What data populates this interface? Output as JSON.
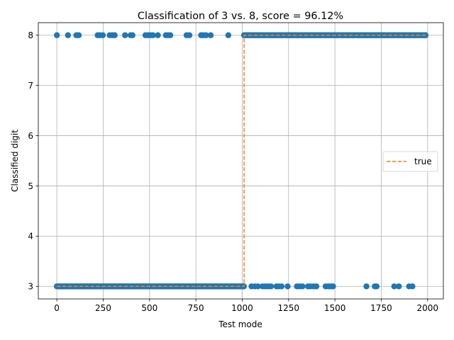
{
  "chart_data": {
    "type": "scatter",
    "title": "Classification of 3 vs. 8, score = 96.12%",
    "xlabel": "Test mode",
    "ylabel": "Classified digit",
    "xlim": [
      -100,
      2085
    ],
    "ylim": [
      2.75,
      8.25
    ],
    "xticks": [
      0,
      250,
      500,
      750,
      1000,
      1250,
      1500,
      1750,
      2000
    ],
    "yticks": [
      3,
      4,
      5,
      6,
      7,
      8
    ],
    "grid": true,
    "legend": {
      "placement": "center-right",
      "entries": [
        "true"
      ]
    },
    "colors": {
      "points": "#1f77b4",
      "true_line": "#ff7f0e"
    },
    "series": [
      {
        "kind": "points",
        "segments": [
          {
            "x_start": 0,
            "x_end": 1009,
            "y": 3
          },
          {
            "x_start": 1010,
            "x_end": 1989,
            "y": 8
          }
        ],
        "outliers": [
          {
            "x": 0,
            "y": 8
          },
          {
            "x": 60,
            "y": 8
          },
          {
            "x": 105,
            "y": 8
          },
          {
            "x": 118,
            "y": 8
          },
          {
            "x": 220,
            "y": 8
          },
          {
            "x": 232,
            "y": 8
          },
          {
            "x": 248,
            "y": 8
          },
          {
            "x": 285,
            "y": 8
          },
          {
            "x": 300,
            "y": 8
          },
          {
            "x": 312,
            "y": 8
          },
          {
            "x": 368,
            "y": 8
          },
          {
            "x": 398,
            "y": 8
          },
          {
            "x": 408,
            "y": 8
          },
          {
            "x": 478,
            "y": 8
          },
          {
            "x": 492,
            "y": 8
          },
          {
            "x": 505,
            "y": 8
          },
          {
            "x": 518,
            "y": 8
          },
          {
            "x": 545,
            "y": 8
          },
          {
            "x": 588,
            "y": 8
          },
          {
            "x": 600,
            "y": 8
          },
          {
            "x": 612,
            "y": 8
          },
          {
            "x": 700,
            "y": 8
          },
          {
            "x": 715,
            "y": 8
          },
          {
            "x": 778,
            "y": 8
          },
          {
            "x": 790,
            "y": 8
          },
          {
            "x": 805,
            "y": 8
          },
          {
            "x": 830,
            "y": 8
          },
          {
            "x": 925,
            "y": 8
          },
          {
            "x": 1050,
            "y": 3
          },
          {
            "x": 1068,
            "y": 3
          },
          {
            "x": 1085,
            "y": 3
          },
          {
            "x": 1110,
            "y": 3
          },
          {
            "x": 1125,
            "y": 3
          },
          {
            "x": 1140,
            "y": 3
          },
          {
            "x": 1155,
            "y": 3
          },
          {
            "x": 1185,
            "y": 3
          },
          {
            "x": 1198,
            "y": 3
          },
          {
            "x": 1212,
            "y": 3
          },
          {
            "x": 1245,
            "y": 3
          },
          {
            "x": 1295,
            "y": 3
          },
          {
            "x": 1310,
            "y": 3
          },
          {
            "x": 1325,
            "y": 3
          },
          {
            "x": 1355,
            "y": 3
          },
          {
            "x": 1368,
            "y": 3
          },
          {
            "x": 1385,
            "y": 3
          },
          {
            "x": 1400,
            "y": 3
          },
          {
            "x": 1450,
            "y": 3
          },
          {
            "x": 1465,
            "y": 3
          },
          {
            "x": 1478,
            "y": 3
          },
          {
            "x": 1490,
            "y": 3
          },
          {
            "x": 1670,
            "y": 3
          },
          {
            "x": 1715,
            "y": 3
          },
          {
            "x": 1725,
            "y": 3
          },
          {
            "x": 1820,
            "y": 3
          },
          {
            "x": 1845,
            "y": 3
          },
          {
            "x": 1900,
            "y": 3
          },
          {
            "x": 1918,
            "y": 3
          }
        ]
      },
      {
        "name": "true",
        "kind": "dashed-step",
        "x": [
          0,
          1010,
          1010,
          1989
        ],
        "y": [
          3,
          3,
          8,
          8
        ]
      }
    ]
  }
}
